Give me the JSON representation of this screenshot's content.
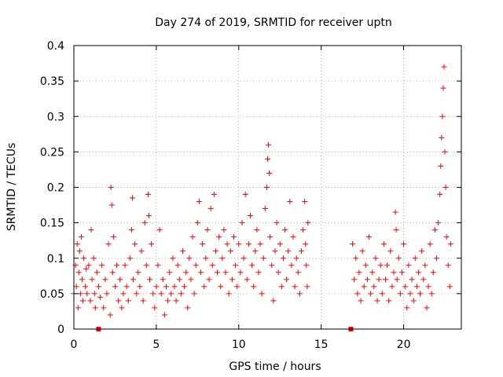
{
  "chart_data": {
    "type": "scatter",
    "title": "Day 274 of 2019, SRMTID for receiver uptn",
    "xlabel": "GPS time / hours",
    "ylabel": "SRMTID / TECUs",
    "xlim": [
      0,
      23.5
    ],
    "ylim": [
      0,
      0.4
    ],
    "xticks": [
      0,
      5,
      10,
      15,
      20
    ],
    "xtick_labels": [
      "0",
      "5",
      "10",
      "15",
      "20"
    ],
    "yticks": [
      0,
      0.05,
      0.1,
      0.15,
      0.2,
      0.25,
      0.3,
      0.35,
      0.4
    ],
    "ytick_labels": [
      "0",
      "0.05",
      "0.1",
      "0.15",
      "0.2",
      "0.25",
      "0.3",
      "0.35",
      "0.4"
    ],
    "grid": true,
    "marker": "+",
    "color": "#ff0000",
    "gap_markers": [
      {
        "x": 1.5,
        "y": 0
      },
      {
        "x": 16.8,
        "y": 0
      }
    ],
    "series": [
      {
        "name": "SRMTID",
        "points": [
          [
            0.0,
            0.05
          ],
          [
            0.1,
            0.09
          ],
          [
            0.15,
            0.06
          ],
          [
            0.2,
            0.12
          ],
          [
            0.25,
            0.03
          ],
          [
            0.3,
            0.08
          ],
          [
            0.35,
            0.11
          ],
          [
            0.4,
            0.05
          ],
          [
            0.45,
            0.13
          ],
          [
            0.5,
            0.07
          ],
          [
            0.55,
            0.04
          ],
          [
            0.6,
            0.1
          ],
          [
            0.7,
            0.06
          ],
          [
            0.75,
            0.085
          ],
          [
            0.8,
            0.05
          ],
          [
            0.9,
            0.09
          ],
          [
            1.0,
            0.04
          ],
          [
            1.05,
            0.14
          ],
          [
            1.1,
            0.07
          ],
          [
            1.2,
            0.1
          ],
          [
            1.25,
            0.05
          ],
          [
            1.3,
            0.03
          ],
          [
            1.4,
            0.08
          ],
          [
            1.5,
            0.06
          ],
          [
            1.6,
            0.045
          ],
          [
            1.7,
            0.09
          ],
          [
            1.8,
            0.03
          ],
          [
            1.9,
            0.07
          ],
          [
            2.0,
            0.05
          ],
          [
            2.1,
            0.12
          ],
          [
            2.2,
            0.02
          ],
          [
            2.25,
            0.2
          ],
          [
            2.3,
            0.175
          ],
          [
            2.35,
            0.08
          ],
          [
            2.4,
            0.13
          ],
          [
            2.5,
            0.06
          ],
          [
            2.6,
            0.09
          ],
          [
            2.7,
            0.04
          ],
          [
            2.8,
            0.07
          ],
          [
            2.9,
            0.03
          ],
          [
            3.0,
            0.05
          ],
          [
            3.1,
            0.09
          ],
          [
            3.2,
            0.06
          ],
          [
            3.3,
            0.04
          ],
          [
            3.4,
            0.1
          ],
          [
            3.5,
            0.14
          ],
          [
            3.55,
            0.185
          ],
          [
            3.6,
            0.07
          ],
          [
            3.7,
            0.12
          ],
          [
            3.8,
            0.05
          ],
          [
            3.9,
            0.08
          ],
          [
            4.0,
            0.06
          ],
          [
            4.1,
            0.11
          ],
          [
            4.2,
            0.04
          ],
          [
            4.3,
            0.15
          ],
          [
            4.4,
            0.09
          ],
          [
            4.5,
            0.19
          ],
          [
            4.55,
            0.16
          ],
          [
            4.6,
            0.07
          ],
          [
            4.7,
            0.12
          ],
          [
            4.8,
            0.05
          ],
          [
            4.9,
            0.03
          ],
          [
            5.0,
            0.06
          ],
          [
            5.1,
            0.09
          ],
          [
            5.2,
            0.14
          ],
          [
            5.3,
            0.05
          ],
          [
            5.4,
            0.07
          ],
          [
            5.5,
            0.02
          ],
          [
            5.6,
            0.06
          ],
          [
            5.7,
            0.04
          ],
          [
            5.8,
            0.08
          ],
          [
            5.9,
            0.05
          ],
          [
            6.0,
            0.1
          ],
          [
            6.1,
            0.06
          ],
          [
            6.2,
            0.04
          ],
          [
            6.3,
            0.09
          ],
          [
            6.4,
            0.07
          ],
          [
            6.5,
            0.05
          ],
          [
            6.6,
            0.11
          ],
          [
            6.7,
            0.06
          ],
          [
            6.8,
            0.08
          ],
          [
            6.9,
            0.03
          ],
          [
            7.0,
            0.1
          ],
          [
            7.1,
            0.07
          ],
          [
            7.2,
            0.13
          ],
          [
            7.3,
            0.05
          ],
          [
            7.4,
            0.09
          ],
          [
            7.5,
            0.15
          ],
          [
            7.6,
            0.18
          ],
          [
            7.7,
            0.08
          ],
          [
            7.8,
            0.12
          ],
          [
            7.9,
            0.06
          ],
          [
            8.0,
            0.1
          ],
          [
            8.1,
            0.14
          ],
          [
            8.2,
            0.07
          ],
          [
            8.3,
            0.17
          ],
          [
            8.4,
            0.09
          ],
          [
            8.5,
            0.19
          ],
          [
            8.6,
            0.11
          ],
          [
            8.7,
            0.08
          ],
          [
            8.8,
            0.13
          ],
          [
            8.9,
            0.06
          ],
          [
            9.0,
            0.1
          ],
          [
            9.1,
            0.14
          ],
          [
            9.2,
            0.08
          ],
          [
            9.3,
            0.12
          ],
          [
            9.4,
            0.05
          ],
          [
            9.5,
            0.11
          ],
          [
            9.6,
            0.07
          ],
          [
            9.7,
            0.13
          ],
          [
            9.8,
            0.09
          ],
          [
            9.9,
            0.06
          ],
          [
            10.0,
            0.12
          ],
          [
            10.1,
            0.08
          ],
          [
            10.2,
            0.15
          ],
          [
            10.3,
            0.1
          ],
          [
            10.4,
            0.19
          ],
          [
            10.5,
            0.07
          ],
          [
            10.6,
            0.12
          ],
          [
            10.7,
            0.16
          ],
          [
            10.8,
            0.09
          ],
          [
            10.9,
            0.06
          ],
          [
            11.0,
            0.11
          ],
          [
            11.1,
            0.14
          ],
          [
            11.2,
            0.08
          ],
          [
            11.3,
            0.12
          ],
          [
            11.4,
            0.05
          ],
          [
            11.5,
            0.1
          ],
          [
            11.6,
            0.17
          ],
          [
            11.7,
            0.2
          ],
          [
            11.75,
            0.24
          ],
          [
            11.8,
            0.26
          ],
          [
            11.85,
            0.22
          ],
          [
            11.9,
            0.13
          ],
          [
            12.0,
            0.09
          ],
          [
            12.1,
            0.04
          ],
          [
            12.2,
            0.11
          ],
          [
            12.3,
            0.15
          ],
          [
            12.4,
            0.08
          ],
          [
            12.5,
            0.12
          ],
          [
            12.6,
            0.06
          ],
          [
            12.7,
            0.1
          ],
          [
            12.8,
            0.14
          ],
          [
            12.9,
            0.07
          ],
          [
            13.0,
            0.11
          ],
          [
            13.1,
            0.18
          ],
          [
            13.2,
            0.09
          ],
          [
            13.3,
            0.13
          ],
          [
            13.4,
            0.06
          ],
          [
            13.5,
            0.1
          ],
          [
            13.6,
            0.08
          ],
          [
            13.7,
            0.05
          ],
          [
            13.8,
            0.11
          ],
          [
            13.9,
            0.14
          ],
          [
            14.0,
            0.18
          ],
          [
            14.05,
            0.12
          ],
          [
            14.1,
            0.09
          ],
          [
            14.15,
            0.06
          ],
          [
            14.2,
            0.15
          ],
          [
            16.9,
            0.12
          ],
          [
            17.0,
            0.07
          ],
          [
            17.1,
            0.1
          ],
          [
            17.2,
            0.05
          ],
          [
            17.3,
            0.08
          ],
          [
            17.4,
            0.04
          ],
          [
            17.5,
            0.11
          ],
          [
            17.6,
            0.06
          ],
          [
            17.7,
            0.09
          ],
          [
            17.8,
            0.07
          ],
          [
            17.9,
            0.13
          ],
          [
            18.0,
            0.05
          ],
          [
            18.1,
            0.08
          ],
          [
            18.2,
            0.06
          ],
          [
            18.3,
            0.1
          ],
          [
            18.4,
            0.04
          ],
          [
            18.5,
            0.07
          ],
          [
            18.6,
            0.09
          ],
          [
            18.7,
            0.05
          ],
          [
            18.8,
            0.12
          ],
          [
            18.9,
            0.07
          ],
          [
            19.0,
            0.09
          ],
          [
            19.1,
            0.04
          ],
          [
            19.2,
            0.11
          ],
          [
            19.3,
            0.06
          ],
          [
            19.4,
            0.08
          ],
          [
            19.5,
            0.165
          ],
          [
            19.55,
            0.14
          ],
          [
            19.6,
            0.07
          ],
          [
            19.7,
            0.1
          ],
          [
            19.8,
            0.05
          ],
          [
            19.9,
            0.08
          ],
          [
            20.0,
            0.12
          ],
          [
            20.1,
            0.06
          ],
          [
            20.2,
            0.03
          ],
          [
            20.3,
            0.09
          ],
          [
            20.4,
            0.05
          ],
          [
            20.5,
            0.07
          ],
          [
            20.6,
            0.04
          ],
          [
            20.7,
            0.1
          ],
          [
            20.8,
            0.06
          ],
          [
            20.9,
            0.08
          ],
          [
            21.0,
            0.05
          ],
          [
            21.1,
            0.11
          ],
          [
            21.2,
            0.07
          ],
          [
            21.3,
            0.09
          ],
          [
            21.4,
            0.03
          ],
          [
            21.5,
            0.06
          ],
          [
            21.6,
            0.12
          ],
          [
            21.7,
            0.05
          ],
          [
            21.8,
            0.08
          ],
          [
            21.9,
            0.14
          ],
          [
            22.0,
            0.1
          ],
          [
            22.1,
            0.15
          ],
          [
            22.2,
            0.19
          ],
          [
            22.25,
            0.23
          ],
          [
            22.3,
            0.27
          ],
          [
            22.35,
            0.3
          ],
          [
            22.4,
            0.34
          ],
          [
            22.45,
            0.37
          ],
          [
            22.5,
            0.25
          ],
          [
            22.55,
            0.2
          ],
          [
            22.6,
            0.13
          ],
          [
            22.7,
            0.09
          ],
          [
            22.8,
            0.06
          ],
          [
            22.85,
            0.12
          ]
        ]
      }
    ]
  }
}
